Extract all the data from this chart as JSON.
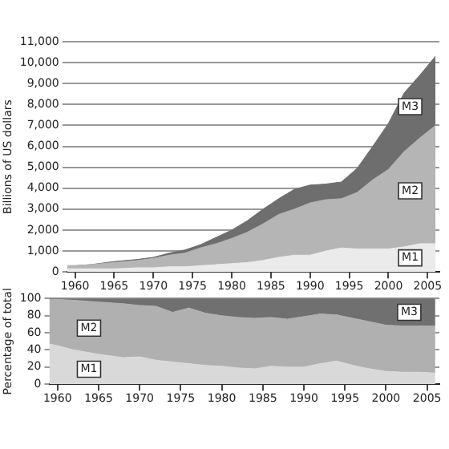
{
  "chart_data": [
    {
      "type": "area",
      "ylabel": "Billions of US dollars",
      "grid": "y",
      "x": [
        1959,
        1960,
        1962,
        1965,
        1968,
        1970,
        1972,
        1974,
        1976,
        1978,
        1980,
        1982,
        1984,
        1986,
        1988,
        1990,
        1992,
        1994,
        1996,
        1998,
        2000,
        2002,
        2004,
        2006
      ],
      "xlim": [
        1959,
        2006.5
      ],
      "xticks": [
        1960,
        1965,
        1970,
        1975,
        1980,
        1985,
        1990,
        1995,
        2000,
        2005
      ],
      "ylim": [
        0,
        11000
      ],
      "yticks": [
        0,
        {
          "value": 1000,
          "label": "1,000"
        },
        {
          "value": 2000,
          "label": "2,000"
        },
        {
          "value": 3000,
          "label": "3,000"
        },
        {
          "value": 4000,
          "label": "4,000"
        },
        {
          "value": 5000,
          "label": "5,000"
        },
        {
          "value": 6000,
          "label": "6,000"
        },
        {
          "value": 7000,
          "label": "7,000"
        },
        {
          "value": 8000,
          "label": "8,000"
        },
        {
          "value": 9000,
          "label": "9,000"
        },
        {
          "value": 10000,
          "label": "10,000"
        },
        {
          "value": 11000,
          "label": "11,000"
        }
      ],
      "series": [
        {
          "name": "M1",
          "color": "#ebebeb",
          "values": [
            150,
            150,
            150,
            150,
            200,
            200,
            250,
            250,
            300,
            350,
            400,
            450,
            550,
            700,
            800,
            800,
            1000,
            1150,
            1100,
            1100,
            1100,
            1200,
            1350,
            1350
          ]
        },
        {
          "name": "M2",
          "color": "#b5b5b5",
          "values": [
            300,
            300,
            350,
            450,
            550,
            650,
            800,
            900,
            1150,
            1350,
            1600,
            1900,
            2300,
            2750,
            3000,
            3300,
            3450,
            3500,
            3800,
            4400,
            4900,
            5750,
            6400,
            7000
          ]
        },
        {
          "name": "M3",
          "color": "#6e6e6e",
          "values": [
            300,
            300,
            350,
            500,
            600,
            700,
            900,
            1050,
            1300,
            1650,
            2000,
            2450,
            3000,
            3500,
            3950,
            4150,
            4200,
            4300,
            4950,
            6000,
            7100,
            8550,
            9400,
            10300
          ]
        }
      ]
    },
    {
      "type": "area",
      "ylabel": "Percentage of total",
      "grid": "y",
      "stacked": true,
      "x": [
        1959,
        1960,
        1962,
        1965,
        1968,
        1970,
        1972,
        1974,
        1976,
        1978,
        1980,
        1982,
        1984,
        1986,
        1988,
        1990,
        1992,
        1994,
        1996,
        1998,
        2000,
        2002,
        2004,
        2006
      ],
      "xlim": [
        1959,
        2006.5
      ],
      "xticks": [
        1960,
        1965,
        1970,
        1975,
        1980,
        1985,
        1990,
        1995,
        2000,
        2005
      ],
      "ylim": [
        0,
        100
      ],
      "yticks": [
        0,
        20,
        40,
        60,
        80,
        100
      ],
      "series": [
        {
          "name": "M1",
          "color": "#d9d9d9",
          "values": [
            47,
            45,
            40,
            35,
            31,
            32,
            28,
            26,
            24,
            22,
            21,
            19,
            18,
            21,
            20,
            20,
            24,
            27,
            22,
            18,
            15,
            14,
            14,
            13
          ]
        },
        {
          "name": "M2",
          "color": "#b0b0b0",
          "values": [
            52,
            54,
            58,
            61,
            63,
            60,
            63,
            58,
            65,
            61,
            59,
            59,
            59,
            57,
            56,
            59,
            58,
            54,
            55,
            55,
            54,
            54,
            54,
            55
          ]
        },
        {
          "name": "M3",
          "color": "#707070",
          "values": [
            1,
            1,
            2,
            4,
            6,
            8,
            9,
            16,
            11,
            17,
            20,
            22,
            23,
            22,
            24,
            21,
            18,
            19,
            23,
            27,
            31,
            32,
            32,
            32
          ]
        }
      ]
    }
  ]
}
